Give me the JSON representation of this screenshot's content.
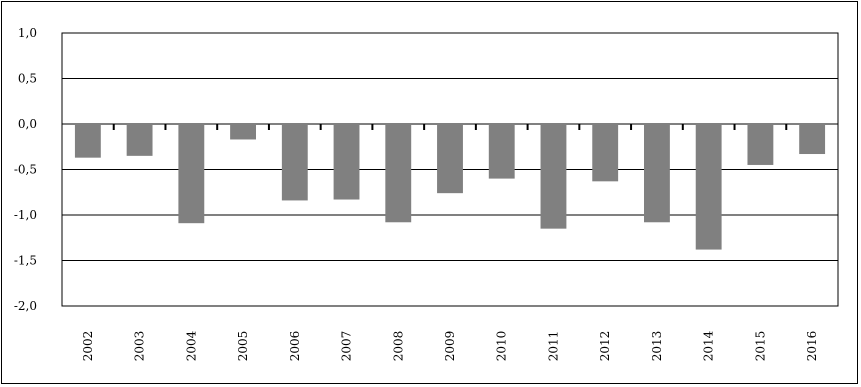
{
  "chart_data": {
    "type": "bar",
    "categories": [
      "2002",
      "2003",
      "2004",
      "2005",
      "2006",
      "2007",
      "2008",
      "2009",
      "2010",
      "2011",
      "2012",
      "2013",
      "2014",
      "2015",
      "2016"
    ],
    "values": [
      -0.37,
      -0.35,
      -1.09,
      -0.17,
      -0.84,
      -0.83,
      -1.08,
      -0.76,
      -0.6,
      -1.15,
      -0.63,
      -1.08,
      -1.38,
      -0.45,
      -0.33
    ],
    "yticks": [
      "1,0",
      "0,5",
      "0,0",
      "-0,5",
      "-1,0",
      "-1,5",
      "-2,0"
    ],
    "ytick_values": [
      1.0,
      0.5,
      0.0,
      -0.5,
      -1.0,
      -1.5,
      -2.0
    ],
    "ylim": [
      -2.0,
      1.0
    ],
    "title": "",
    "xlabel": "",
    "ylabel": "",
    "grid": true,
    "colors": {
      "bar": "#808080",
      "gridline": "#000000",
      "axis": "#000000"
    }
  }
}
